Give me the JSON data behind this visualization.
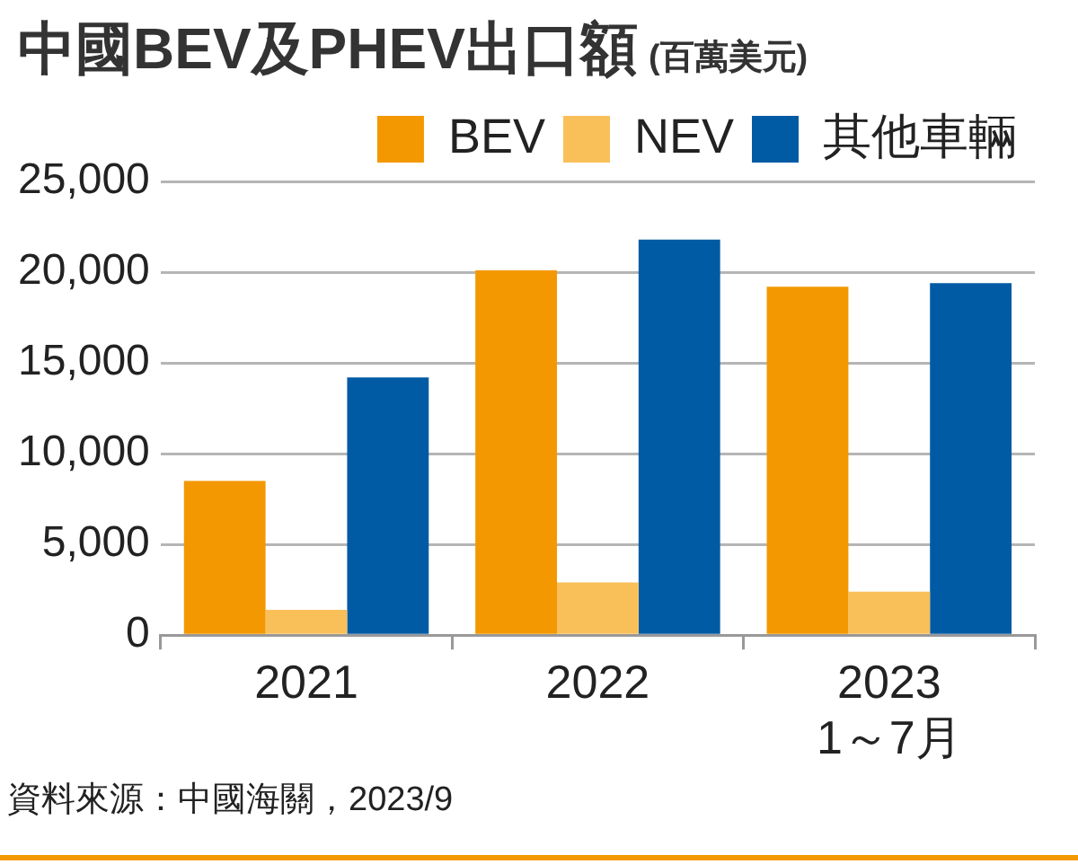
{
  "chart_data": {
    "type": "bar",
    "title": "中國BEV及PHEV出口額",
    "subtitle": "(百萬美元)",
    "categories": [
      "2021",
      "2022",
      "2023\n1～7月"
    ],
    "series": [
      {
        "name": "BEV",
        "color": "#f39800",
        "values": [
          8500,
          20100,
          19200
        ]
      },
      {
        "name": "NEV",
        "color": "#f9c05a",
        "values": [
          1400,
          2900,
          2400
        ]
      },
      {
        "name": "其他車輛",
        "color": "#005ba4",
        "values": [
          14200,
          21800,
          19400
        ]
      }
    ],
    "ylim": [
      0,
      25000
    ],
    "yticks": [
      {
        "value": 0,
        "label": "0"
      },
      {
        "value": 5000,
        "label": "5,000"
      },
      {
        "value": 10000,
        "label": "10,000"
      },
      {
        "value": 15000,
        "label": "15,000"
      },
      {
        "value": 20000,
        "label": "20,000"
      },
      {
        "value": 25000,
        "label": "25,000"
      }
    ],
    "grid": "y",
    "legend": "top right",
    "annotations": [
      "資料來源：中國海關，2023/9"
    ]
  }
}
